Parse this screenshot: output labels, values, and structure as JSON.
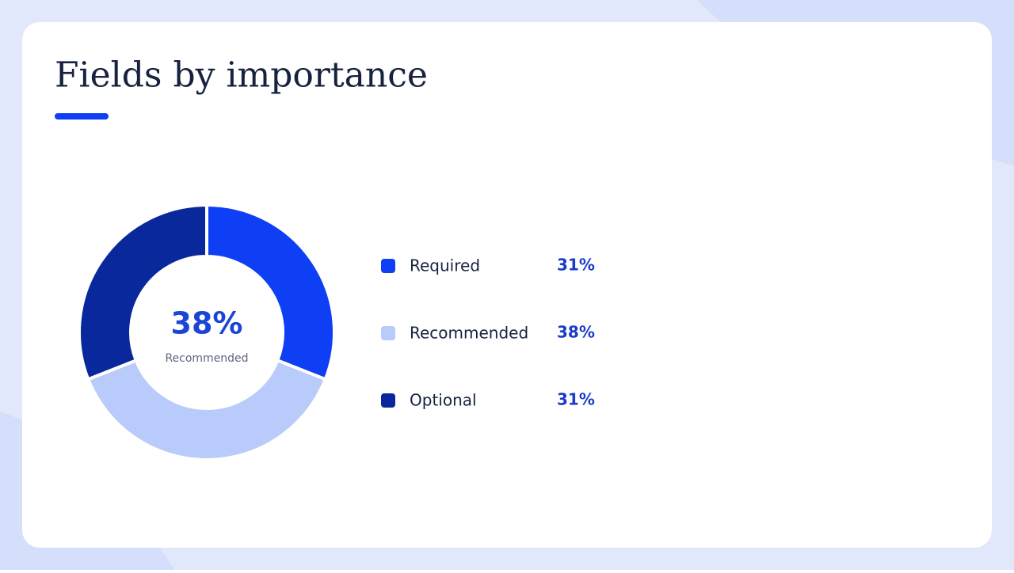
{
  "chart_data": {
    "type": "pie",
    "title": "Fields by importance",
    "categories": [
      "Required",
      "Recommended",
      "Optional"
    ],
    "values": [
      31,
      38,
      31
    ],
    "value_labels": [
      "31%",
      "38%",
      "31%"
    ],
    "colors": [
      "#0f3ff5",
      "#b9cbfb",
      "#08289c"
    ],
    "center_text": "38%",
    "center_caption": "Recommended"
  }
}
